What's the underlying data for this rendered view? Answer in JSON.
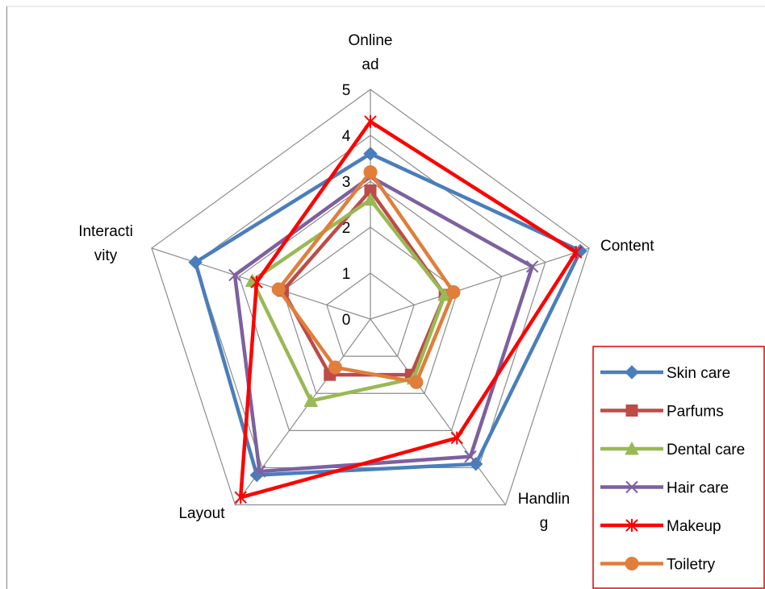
{
  "chart_data": {
    "type": "radar",
    "title": "",
    "axes": [
      "Online ad",
      "Content",
      "Handling",
      "Layout",
      "Interactivity"
    ],
    "axis_labels_display": [
      [
        "Online",
        "ad"
      ],
      [
        "Content"
      ],
      [
        "Handlin",
        "g"
      ],
      [
        "Layout"
      ],
      [
        "Interacti",
        "vity"
      ]
    ],
    "ticks": [
      "0",
      "1",
      "2",
      "3",
      "4",
      "5"
    ],
    "range": [
      0,
      5
    ],
    "gridlines": true,
    "legend_position": "right",
    "series": [
      {
        "name": "Skin care",
        "color": "#4A7EBB",
        "marker": "diamond",
        "values": [
          3.6,
          4.8,
          3.9,
          4.2,
          4.0
        ]
      },
      {
        "name": "Parfums",
        "color": "#BE4B48",
        "marker": "square",
        "values": [
          2.8,
          1.7,
          1.5,
          1.5,
          2.0
        ]
      },
      {
        "name": "Dental care",
        "color": "#98B954",
        "marker": "triangle",
        "values": [
          2.6,
          1.7,
          1.6,
          2.2,
          2.7
        ]
      },
      {
        "name": "Hair care",
        "color": "#7D60A0",
        "marker": "x",
        "values": [
          3.1,
          3.7,
          3.7,
          4.1,
          3.1
        ]
      },
      {
        "name": "Makeup",
        "color": "#FF0000",
        "marker": "star",
        "values": [
          4.3,
          4.7,
          3.2,
          4.8,
          2.6
        ]
      },
      {
        "name": "Toiletry",
        "color": "#E07E3A",
        "marker": "circle",
        "values": [
          3.2,
          1.9,
          1.7,
          1.3,
          2.1
        ]
      }
    ]
  }
}
